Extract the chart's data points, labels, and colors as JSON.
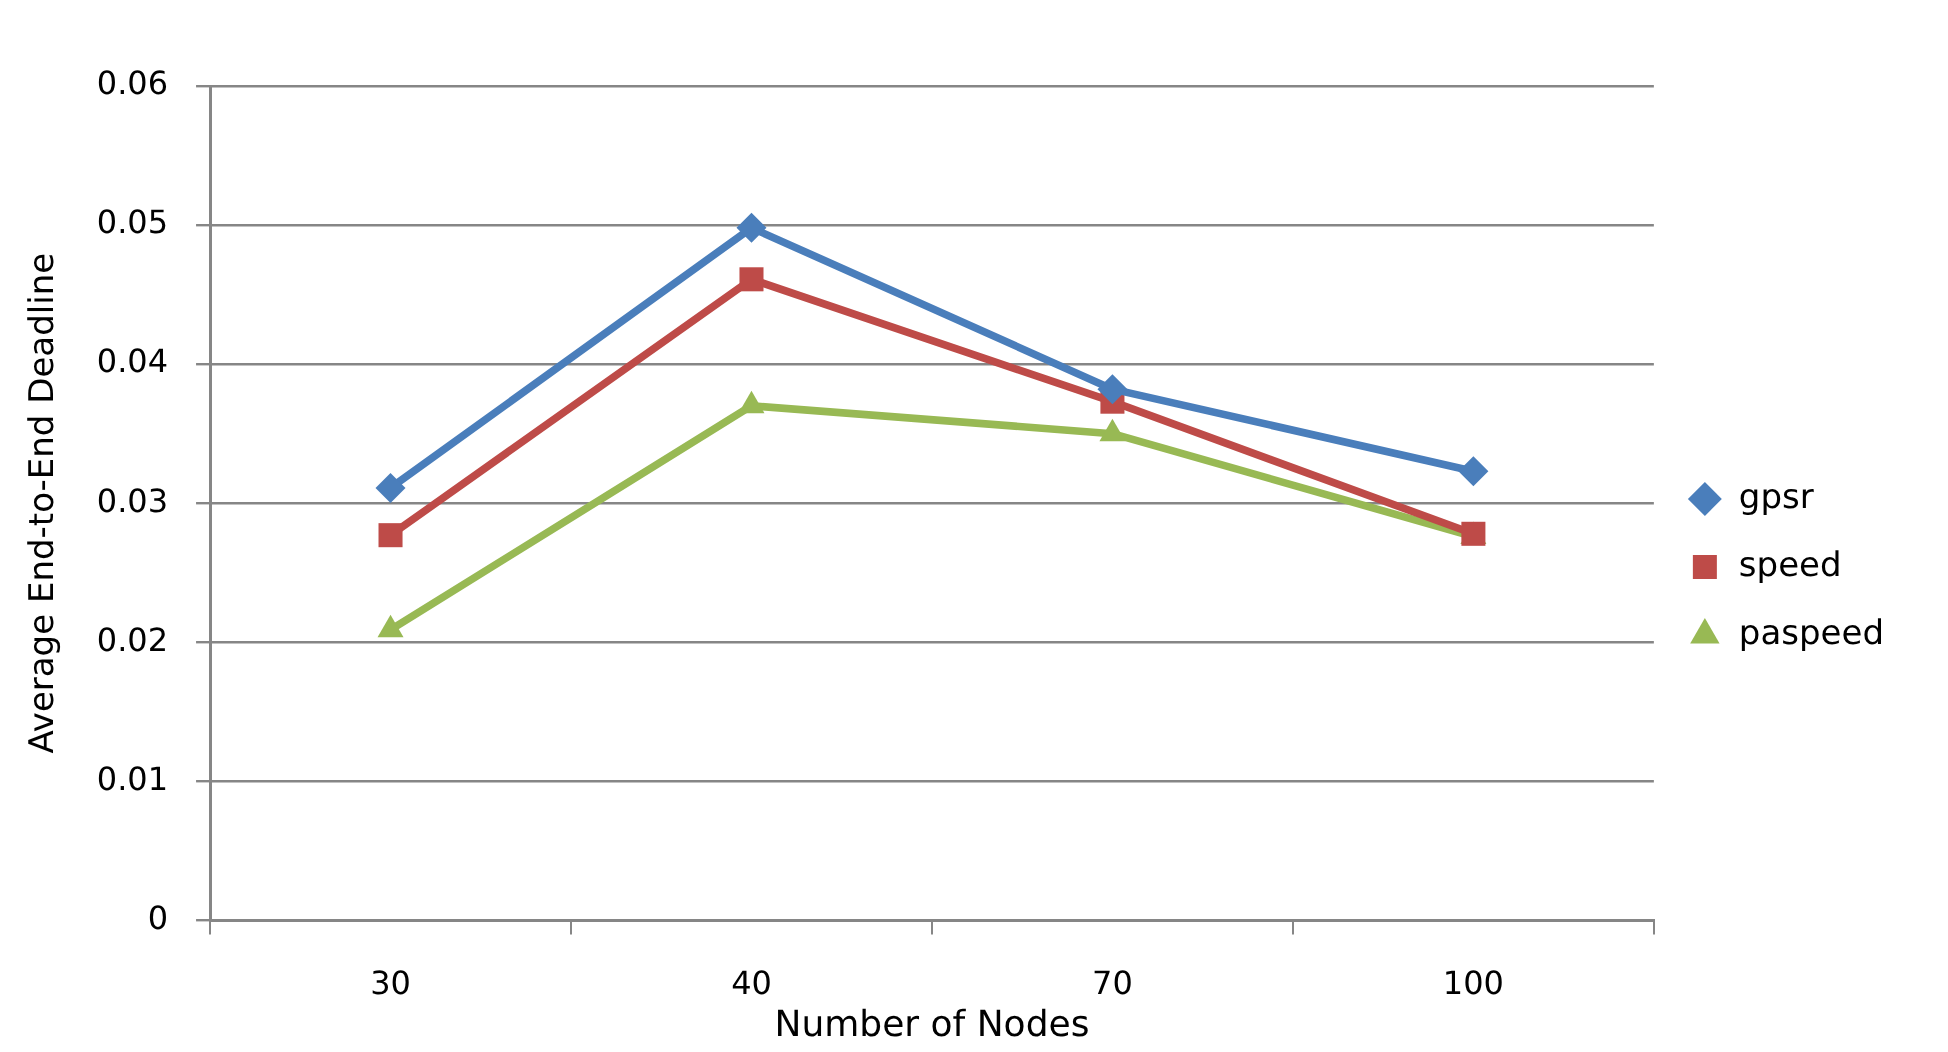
{
  "chart_data": {
    "type": "line",
    "xlabel": "Number of Nodes",
    "ylabel": "Average End-to-End Deadline",
    "categories": [
      "30",
      "40",
      "70",
      "100"
    ],
    "series": [
      {
        "name": "gpsr",
        "color": "#4a7ebb",
        "marker": "diamond",
        "values": [
          0.0311,
          0.0498,
          0.0382,
          0.0323
        ]
      },
      {
        "name": "speed",
        "color": "#be4b48",
        "marker": "square",
        "values": [
          0.0277,
          0.0461,
          0.0373,
          0.0278
        ]
      },
      {
        "name": "paspeed",
        "color": "#98b954",
        "marker": "triangle",
        "values": [
          0.0209,
          0.037,
          0.035,
          0.0276
        ]
      }
    ],
    "ylim": [
      0,
      0.06
    ],
    "yticks": [
      0,
      0.01,
      0.02,
      0.03,
      0.04,
      0.05,
      0.06
    ],
    "grid": "y",
    "legend": "right",
    "line_style": "solid"
  }
}
